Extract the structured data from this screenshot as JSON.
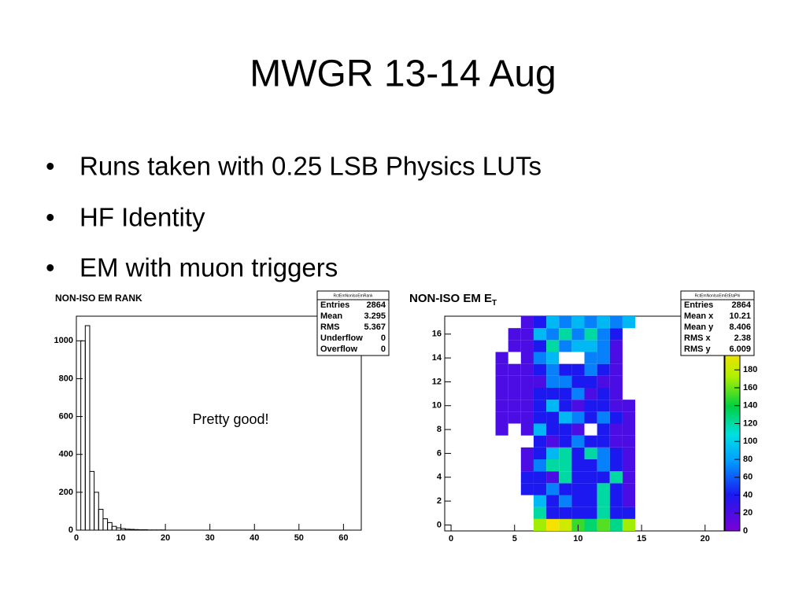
{
  "title": "MWGR 13-14 Aug",
  "bullets": [
    "Runs taken with 0.25 LSB Physics LUTs",
    "HF Identity",
    "EM with muon triggers"
  ],
  "note": "Pretty good!",
  "chart_data": [
    {
      "type": "histogram",
      "title": "NON-ISO EM RANK",
      "color": "#000000",
      "bins": [
        0,
        1,
        2,
        3,
        4,
        5,
        6,
        7,
        8,
        9,
        10,
        11,
        12,
        13,
        14,
        15,
        16,
        17,
        18,
        19,
        20
      ],
      "values": [
        0,
        1000,
        1080,
        310,
        200,
        110,
        60,
        40,
        20,
        12,
        8,
        5,
        4,
        3,
        2,
        2,
        1,
        1,
        1,
        1
      ],
      "xlim": [
        0,
        64
      ],
      "xticks": [
        0,
        10,
        20,
        30,
        40,
        50,
        60
      ],
      "ylim": [
        0,
        1130
      ],
      "yticks": [
        0,
        200,
        400,
        600,
        800,
        1000
      ],
      "stats": {
        "name": "RctEmNonIsoEmRank",
        "rows": [
          {
            "label": "Entries",
            "value": 2864
          },
          {
            "label": "Mean",
            "value": 3.295
          },
          {
            "label": "RMS",
            "value": 5.367
          },
          {
            "label": "Underflow",
            "value": 0
          },
          {
            "label": "Overflow",
            "value": 0
          }
        ]
      }
    },
    {
      "type": "heatmap",
      "title": "NON-ISO EM E",
      "title_subscript": "T",
      "x": [
        4,
        5,
        6,
        7,
        8,
        9,
        10,
        11,
        12,
        13,
        14
      ],
      "y": [
        0,
        1,
        2,
        3,
        4,
        5,
        6,
        7,
        8,
        9,
        10,
        11,
        12,
        13,
        14,
        15,
        16,
        17
      ],
      "z": [
        [
          null,
          null,
          null,
          170,
          200,
          185,
          150,
          130,
          155,
          125,
          170
        ],
        [
          null,
          null,
          null,
          120,
          40,
          40,
          40,
          40,
          120,
          40,
          40
        ],
        [
          null,
          null,
          null,
          90,
          40,
          70,
          40,
          40,
          120,
          40,
          20
        ],
        [
          null,
          null,
          40,
          40,
          70,
          40,
          40,
          40,
          120,
          40,
          20
        ],
        [
          null,
          null,
          40,
          40,
          20,
          120,
          40,
          40,
          40,
          120,
          20
        ],
        [
          null,
          null,
          20,
          70,
          120,
          120,
          40,
          40,
          70,
          40,
          20
        ],
        [
          null,
          null,
          20,
          40,
          90,
          120,
          40,
          120,
          70,
          40,
          20
        ],
        [
          null,
          null,
          null,
          40,
          20,
          40,
          70,
          40,
          40,
          20,
          20
        ],
        [
          20,
          null,
          20,
          90,
          40,
          40,
          20,
          null,
          40,
          20,
          20
        ],
        [
          20,
          20,
          20,
          40,
          40,
          90,
          70,
          40,
          70,
          40,
          20
        ],
        [
          20,
          20,
          20,
          40,
          90,
          40,
          20,
          40,
          40,
          20,
          20
        ],
        [
          20,
          20,
          20,
          40,
          40,
          40,
          70,
          20,
          40,
          20,
          null
        ],
        [
          20,
          20,
          20,
          20,
          70,
          70,
          40,
          40,
          20,
          20,
          null
        ],
        [
          20,
          20,
          20,
          40,
          70,
          40,
          40,
          70,
          40,
          20,
          null
        ],
        [
          20,
          null,
          20,
          70,
          90,
          null,
          null,
          70,
          70,
          20,
          null
        ],
        [
          null,
          20,
          20,
          40,
          120,
          70,
          90,
          90,
          70,
          20,
          null
        ],
        [
          null,
          20,
          20,
          90,
          70,
          120,
          70,
          120,
          70,
          40,
          null
        ],
        [
          null,
          null,
          20,
          40,
          90,
          70,
          90,
          70,
          90,
          70,
          90
        ]
      ],
      "xlim": [
        -0.5,
        21.5
      ],
      "xticks": [
        0,
        5,
        10,
        15,
        20
      ],
      "ylim": [
        -0.5,
        17.5
      ],
      "yticks": [
        0,
        2,
        4,
        6,
        8,
        10,
        12,
        14,
        16
      ],
      "zlim": [
        0,
        240
      ],
      "zticks": [
        0,
        20,
        40,
        60,
        80,
        100,
        120,
        140,
        160,
        180
      ],
      "stats": {
        "name": "RctEmNonIsoEmEtEtaPhi",
        "rows": [
          {
            "label": "Entries",
            "value": 2864
          },
          {
            "label": "Mean x",
            "value": 10.21
          },
          {
            "label": "Mean y",
            "value": 8.406
          },
          {
            "label": "RMS x",
            "value": 2.38
          },
          {
            "label": "RMS y",
            "value": 6.009
          }
        ]
      }
    }
  ]
}
